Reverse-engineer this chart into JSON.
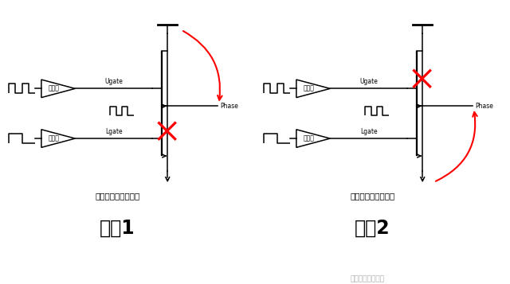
{
  "bg_color": "#ffffff",
  "title1": "状态1",
  "title2": "状态2",
  "subtitle1": "上管打开，下管关闭",
  "subtitle2": "上管关闭，下管打开",
  "text_ugate": "Ugate",
  "text_lgate": "Lgate",
  "text_phase": "Phase",
  "text_driver": "驱动器",
  "watermark": "硬件十万个为什么",
  "black": "#000000",
  "red": "#ff0000",
  "gray": "#999999"
}
